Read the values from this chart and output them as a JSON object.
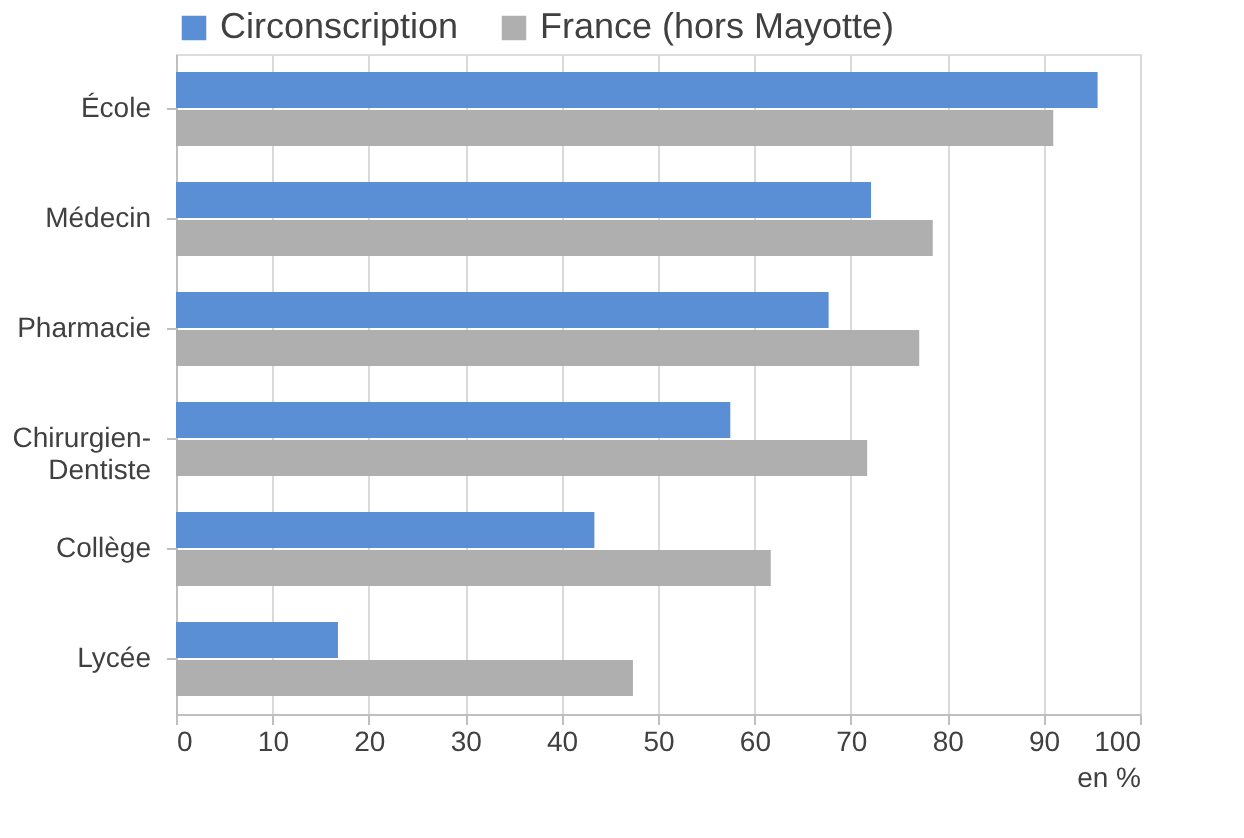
{
  "chart_data": {
    "type": "bar",
    "orientation": "horizontal",
    "xlabel": "en %",
    "categories": [
      "École",
      "Médecin",
      "Pharmacie",
      "Chirurgien-Dentiste",
      "Collège",
      "Lycée"
    ],
    "series": [
      {
        "name": "Circonscription",
        "color": "#5b8fd5",
        "values": [
          95.6,
          72.1,
          67.7,
          57.5,
          43.4,
          16.8
        ]
      },
      {
        "name": "France (hors Mayotte)",
        "color": "#b0afb0",
        "values": [
          91.0,
          78.5,
          77.1,
          71.7,
          61.7,
          47.4
        ]
      }
    ],
    "xlim": [
      0,
      100
    ],
    "xticks": [
      0,
      10,
      20,
      30,
      40,
      50,
      60,
      70,
      80,
      90,
      100
    ],
    "grid": "x",
    "legend": "top"
  }
}
